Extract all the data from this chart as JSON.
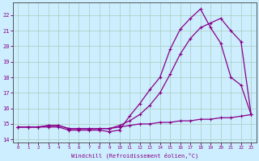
{
  "bg_color": "#cceeff",
  "grid_color": "#aaccbb",
  "line_color": "#880088",
  "xlim": [
    -0.5,
    23.5
  ],
  "ylim": [
    13.8,
    22.8
  ],
  "xticks": [
    0,
    1,
    2,
    3,
    4,
    5,
    6,
    7,
    8,
    9,
    10,
    11,
    12,
    13,
    14,
    15,
    16,
    17,
    18,
    19,
    20,
    21,
    22,
    23
  ],
  "yticks": [
    14,
    15,
    16,
    17,
    18,
    19,
    20,
    21,
    22
  ],
  "xlabel": "Windchill (Refroidissement éolien,°C)",
  "series": [
    {
      "x": [
        0,
        1,
        2,
        3,
        4,
        5,
        6,
        7,
        8,
        9,
        10,
        11,
        12,
        13,
        14,
        15,
        16,
        17,
        18,
        19,
        20,
        21,
        22,
        23
      ],
      "y": [
        14.8,
        14.8,
        14.8,
        14.9,
        14.9,
        14.7,
        14.7,
        14.7,
        14.7,
        14.7,
        14.8,
        14.9,
        15.0,
        15.0,
        15.1,
        15.1,
        15.2,
        15.2,
        15.3,
        15.3,
        15.4,
        15.4,
        15.5,
        15.6
      ],
      "style": "-",
      "marker": "+"
    },
    {
      "x": [
        0,
        1,
        2,
        3,
        4,
        5,
        6,
        7,
        8,
        9,
        10,
        11,
        12,
        13,
        14,
        15,
        16,
        17,
        18,
        19,
        20,
        21,
        22,
        23
      ],
      "y": [
        14.8,
        14.8,
        14.8,
        14.9,
        14.9,
        14.7,
        14.7,
        14.7,
        14.7,
        14.7,
        14.9,
        15.2,
        15.6,
        16.2,
        17.0,
        18.2,
        19.5,
        20.5,
        21.2,
        21.5,
        21.8,
        21.0,
        20.3,
        15.6
      ],
      "style": "-",
      "marker": "+"
    },
    {
      "x": [
        0,
        1,
        2,
        3,
        4,
        5,
        6,
        7,
        8,
        9,
        10,
        11,
        12,
        13,
        14,
        15,
        16,
        17,
        18,
        19,
        20,
        21,
        22,
        23
      ],
      "y": [
        14.8,
        14.8,
        14.8,
        14.8,
        14.8,
        14.6,
        14.6,
        14.6,
        14.6,
        14.5,
        14.6,
        15.5,
        16.3,
        17.2,
        18.0,
        19.8,
        21.1,
        21.8,
        22.4,
        21.2,
        20.2,
        18.0,
        17.5,
        15.6
      ],
      "style": "-",
      "marker": "+"
    }
  ]
}
